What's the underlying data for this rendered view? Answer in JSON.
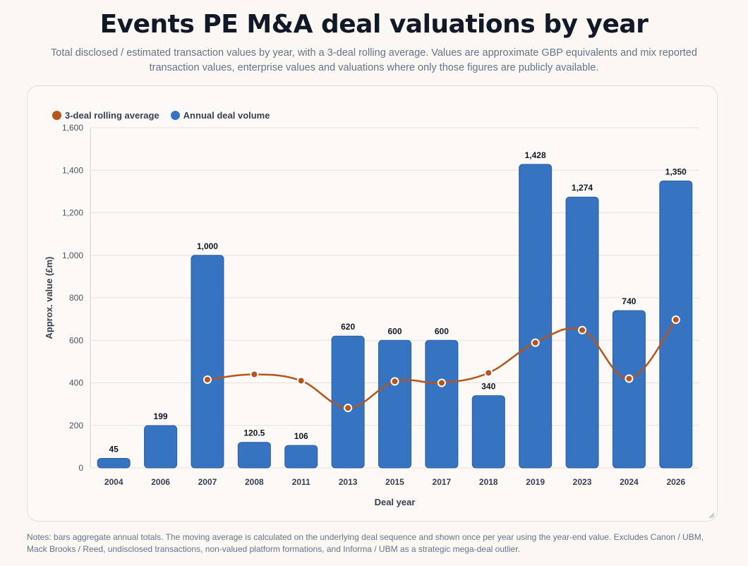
{
  "page": {
    "title": "Events PE M&A deal valuations by year",
    "subtitle": "Total disclosed / estimated transaction values by year, with a 3-deal rolling average. Values are approximate GBP equivalents and mix reported transaction values, enterprise values and valuations where only those figures are publicly available.",
    "notes": "Notes: bars aggregate annual totals. The moving average is calculated on the underlying deal sequence and shown once per year using the year-end value. Excludes Canon / UBM, Mack Brooks / Reed, undisclosed transactions, non-valued platform formations, and Informa / UBM as a strategic mega-deal outlier."
  },
  "colors": {
    "bar": "#3674c2",
    "line": "#b5541c",
    "grid": "#e6e1dc",
    "background": "#fbf7f3"
  },
  "chart_data": {
    "type": "bar",
    "title": "Events PE M&A deal valuations by year",
    "xlabel": "Deal year",
    "ylabel": "Approx. value (£m)",
    "ylim": [
      0,
      1600
    ],
    "yticks": [
      "0",
      "200",
      "400",
      "600",
      "800",
      "1,000",
      "1,200",
      "1,400",
      "1,600"
    ],
    "ytick_values": [
      0,
      200,
      400,
      600,
      800,
      1000,
      1200,
      1400,
      1600
    ],
    "grid": true,
    "legend_position": "top-left",
    "categories": [
      "2004",
      "2006",
      "2007",
      "2008",
      "2011",
      "2013",
      "2015",
      "2017",
      "2018",
      "2019",
      "2023",
      "2024",
      "2026"
    ],
    "series": [
      {
        "name": "Annual deal volume",
        "type": "bar",
        "values": [
          45,
          199,
          1000,
          120.5,
          106,
          620,
          600,
          600,
          340,
          1428,
          1274,
          740,
          1350
        ],
        "labels": [
          "45",
          "199",
          "1,000",
          "120.5",
          "106",
          "620",
          "600",
          "600",
          "340",
          "1,428",
          "1,274",
          "740",
          "1,350"
        ]
      },
      {
        "name": "3-deal rolling average",
        "type": "line",
        "values": [
          null,
          null,
          415,
          440,
          410,
          282,
          407,
          400,
          447,
          589,
          648,
          420,
          697
        ]
      }
    ]
  }
}
